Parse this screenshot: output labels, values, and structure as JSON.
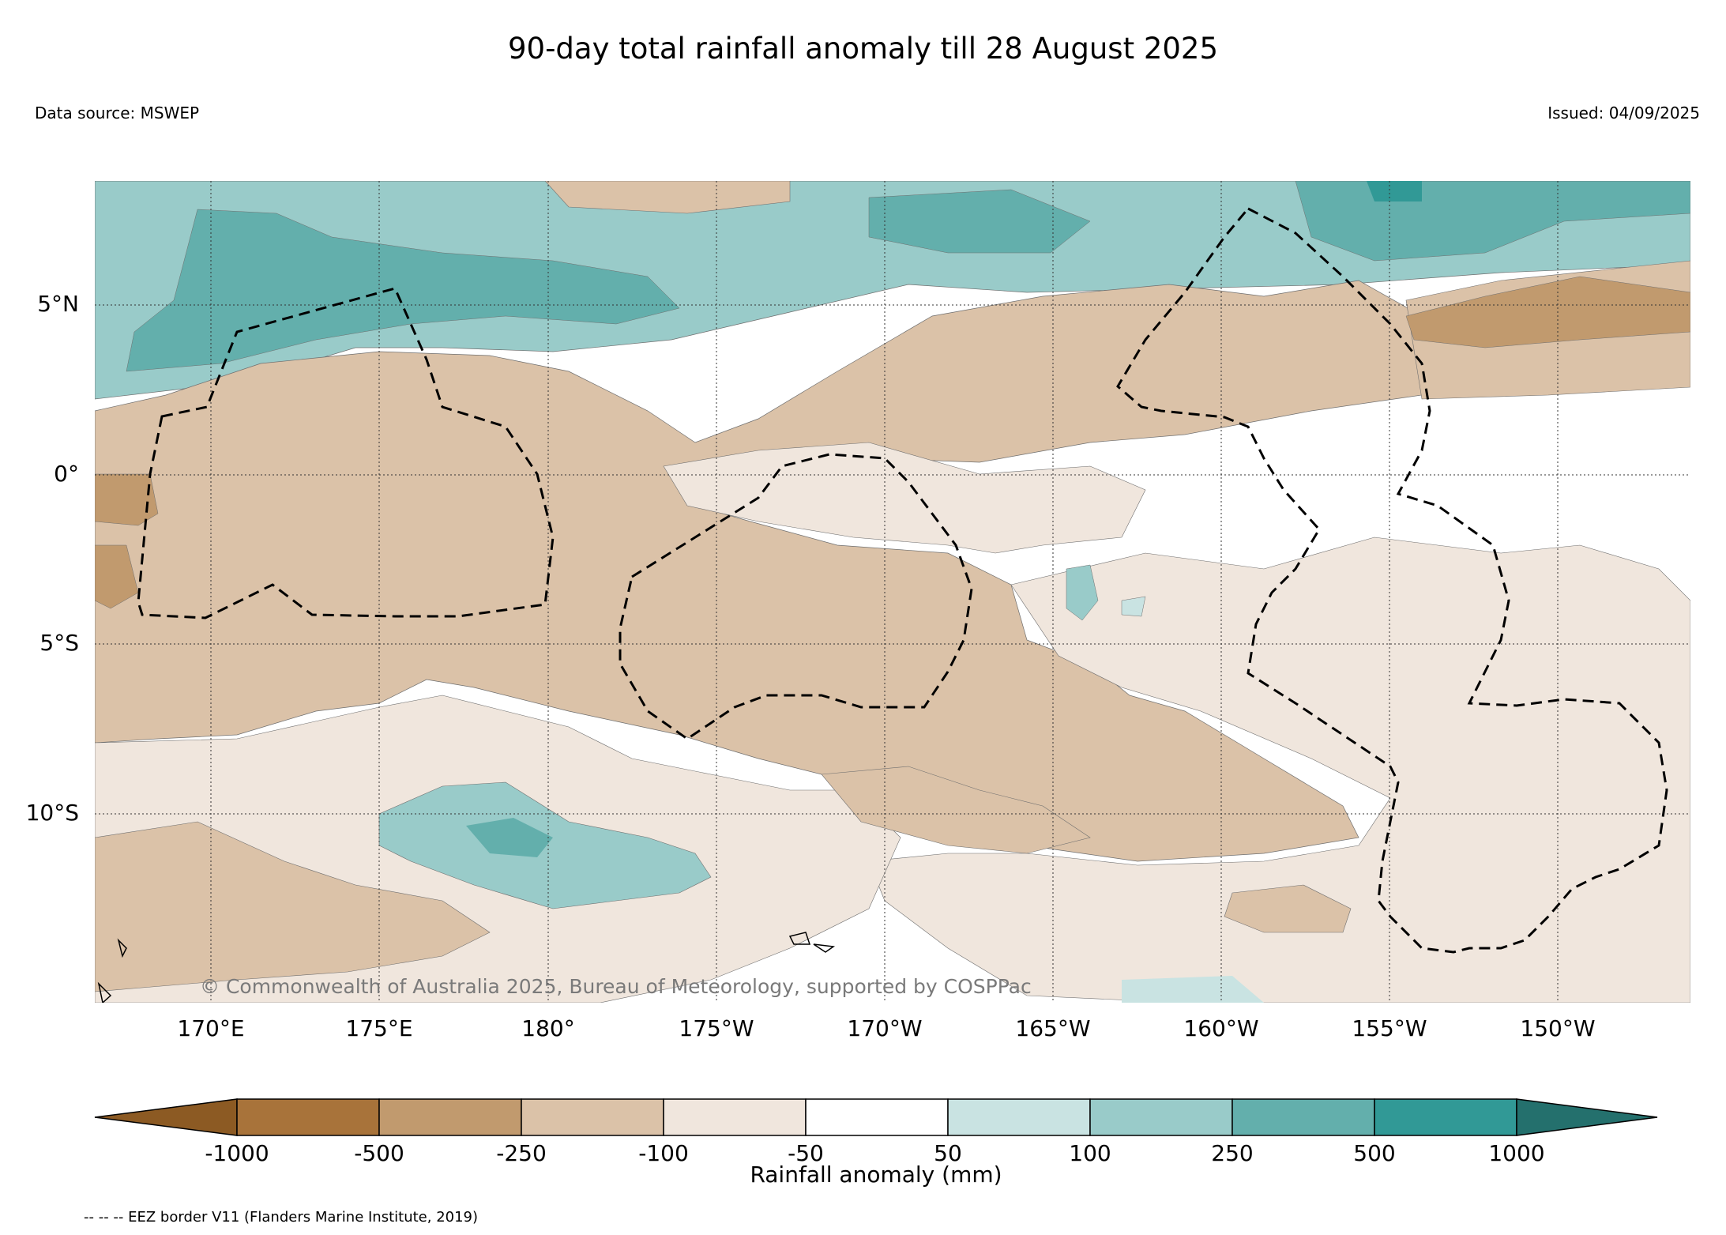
{
  "title": "90-day total rainfall anomaly till 28 August 2025",
  "data_source": "Data source: MSWEP",
  "issued": "Issued: 04/09/2025",
  "map": {
    "lat_labels": [
      "5°N",
      "0°",
      "5°S",
      "10°S"
    ],
    "lon_labels": [
      "170°E",
      "175°E",
      "180°",
      "175°W",
      "170°W",
      "165°W",
      "160°W",
      "155°W",
      "150°W"
    ],
    "copyright": "© Commonwealth of Australia 2025, Bureau of Meteorology, supported by COSPPac"
  },
  "colorbar": {
    "label": "Rainfall anomaly (mm)",
    "ticks": [
      "-1000",
      "-500",
      "-250",
      "-100",
      "-50",
      "50",
      "100",
      "250",
      "500",
      "1000"
    ],
    "colors": [
      "#8c5a23",
      "#a8733a",
      "#c19a6e",
      "#dbc2a8",
      "#f0e6dd",
      "#ffffff",
      "#c9e3e2",
      "#99cbc9",
      "#63afac",
      "#319996",
      "#24706d"
    ]
  },
  "legend_note": "-- -- -- EEZ border V11 (Flanders Marine Institute, 2019)"
}
